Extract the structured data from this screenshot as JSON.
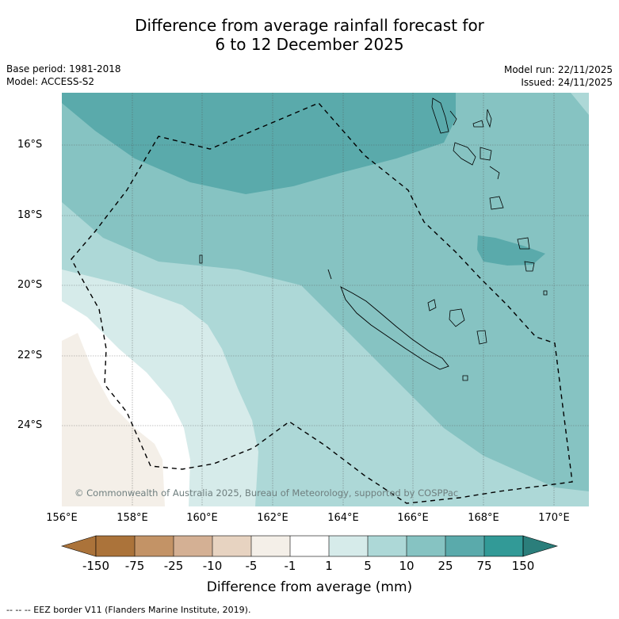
{
  "title_line1": "Difference from average rainfall forecast for",
  "title_line2": "6 to 12 December 2025",
  "base_period": "Base period: 1981-2018",
  "model": "Model: ACCESS-S2",
  "model_run": "Model run: 22/11/2025",
  "issued": "Issued: 24/11/2025",
  "copyright": "© Commonwealth of Australia 2025, Bureau of Meteorology, supported by COSPPac",
  "lat_labels": [
    "16°S",
    "18°S",
    "20°S",
    "22°S",
    "24°S"
  ],
  "lon_labels": [
    "156°E",
    "158°E",
    "160°E",
    "162°E",
    "164°E",
    "166°E",
    "168°E",
    "170°E"
  ],
  "colorbar": {
    "title": "Difference from average (mm)",
    "ticks": [
      "-150",
      "-75",
      "-25",
      "-10",
      "-5",
      "-1",
      "1",
      "5",
      "10",
      "25",
      "75",
      "150"
    ],
    "colors": [
      "#ab733a",
      "#c39366",
      "#d4b094",
      "#e7d3c1",
      "#f4efe8",
      "#ffffff",
      "#d6ebea",
      "#add8d7",
      "#86c3c2",
      "#5aaaab",
      "#329a97",
      "#2b7e7b"
    ]
  },
  "eez_legend": "--  --  -- EEZ border V11 (Flanders Marine Institute, 2019)."
}
